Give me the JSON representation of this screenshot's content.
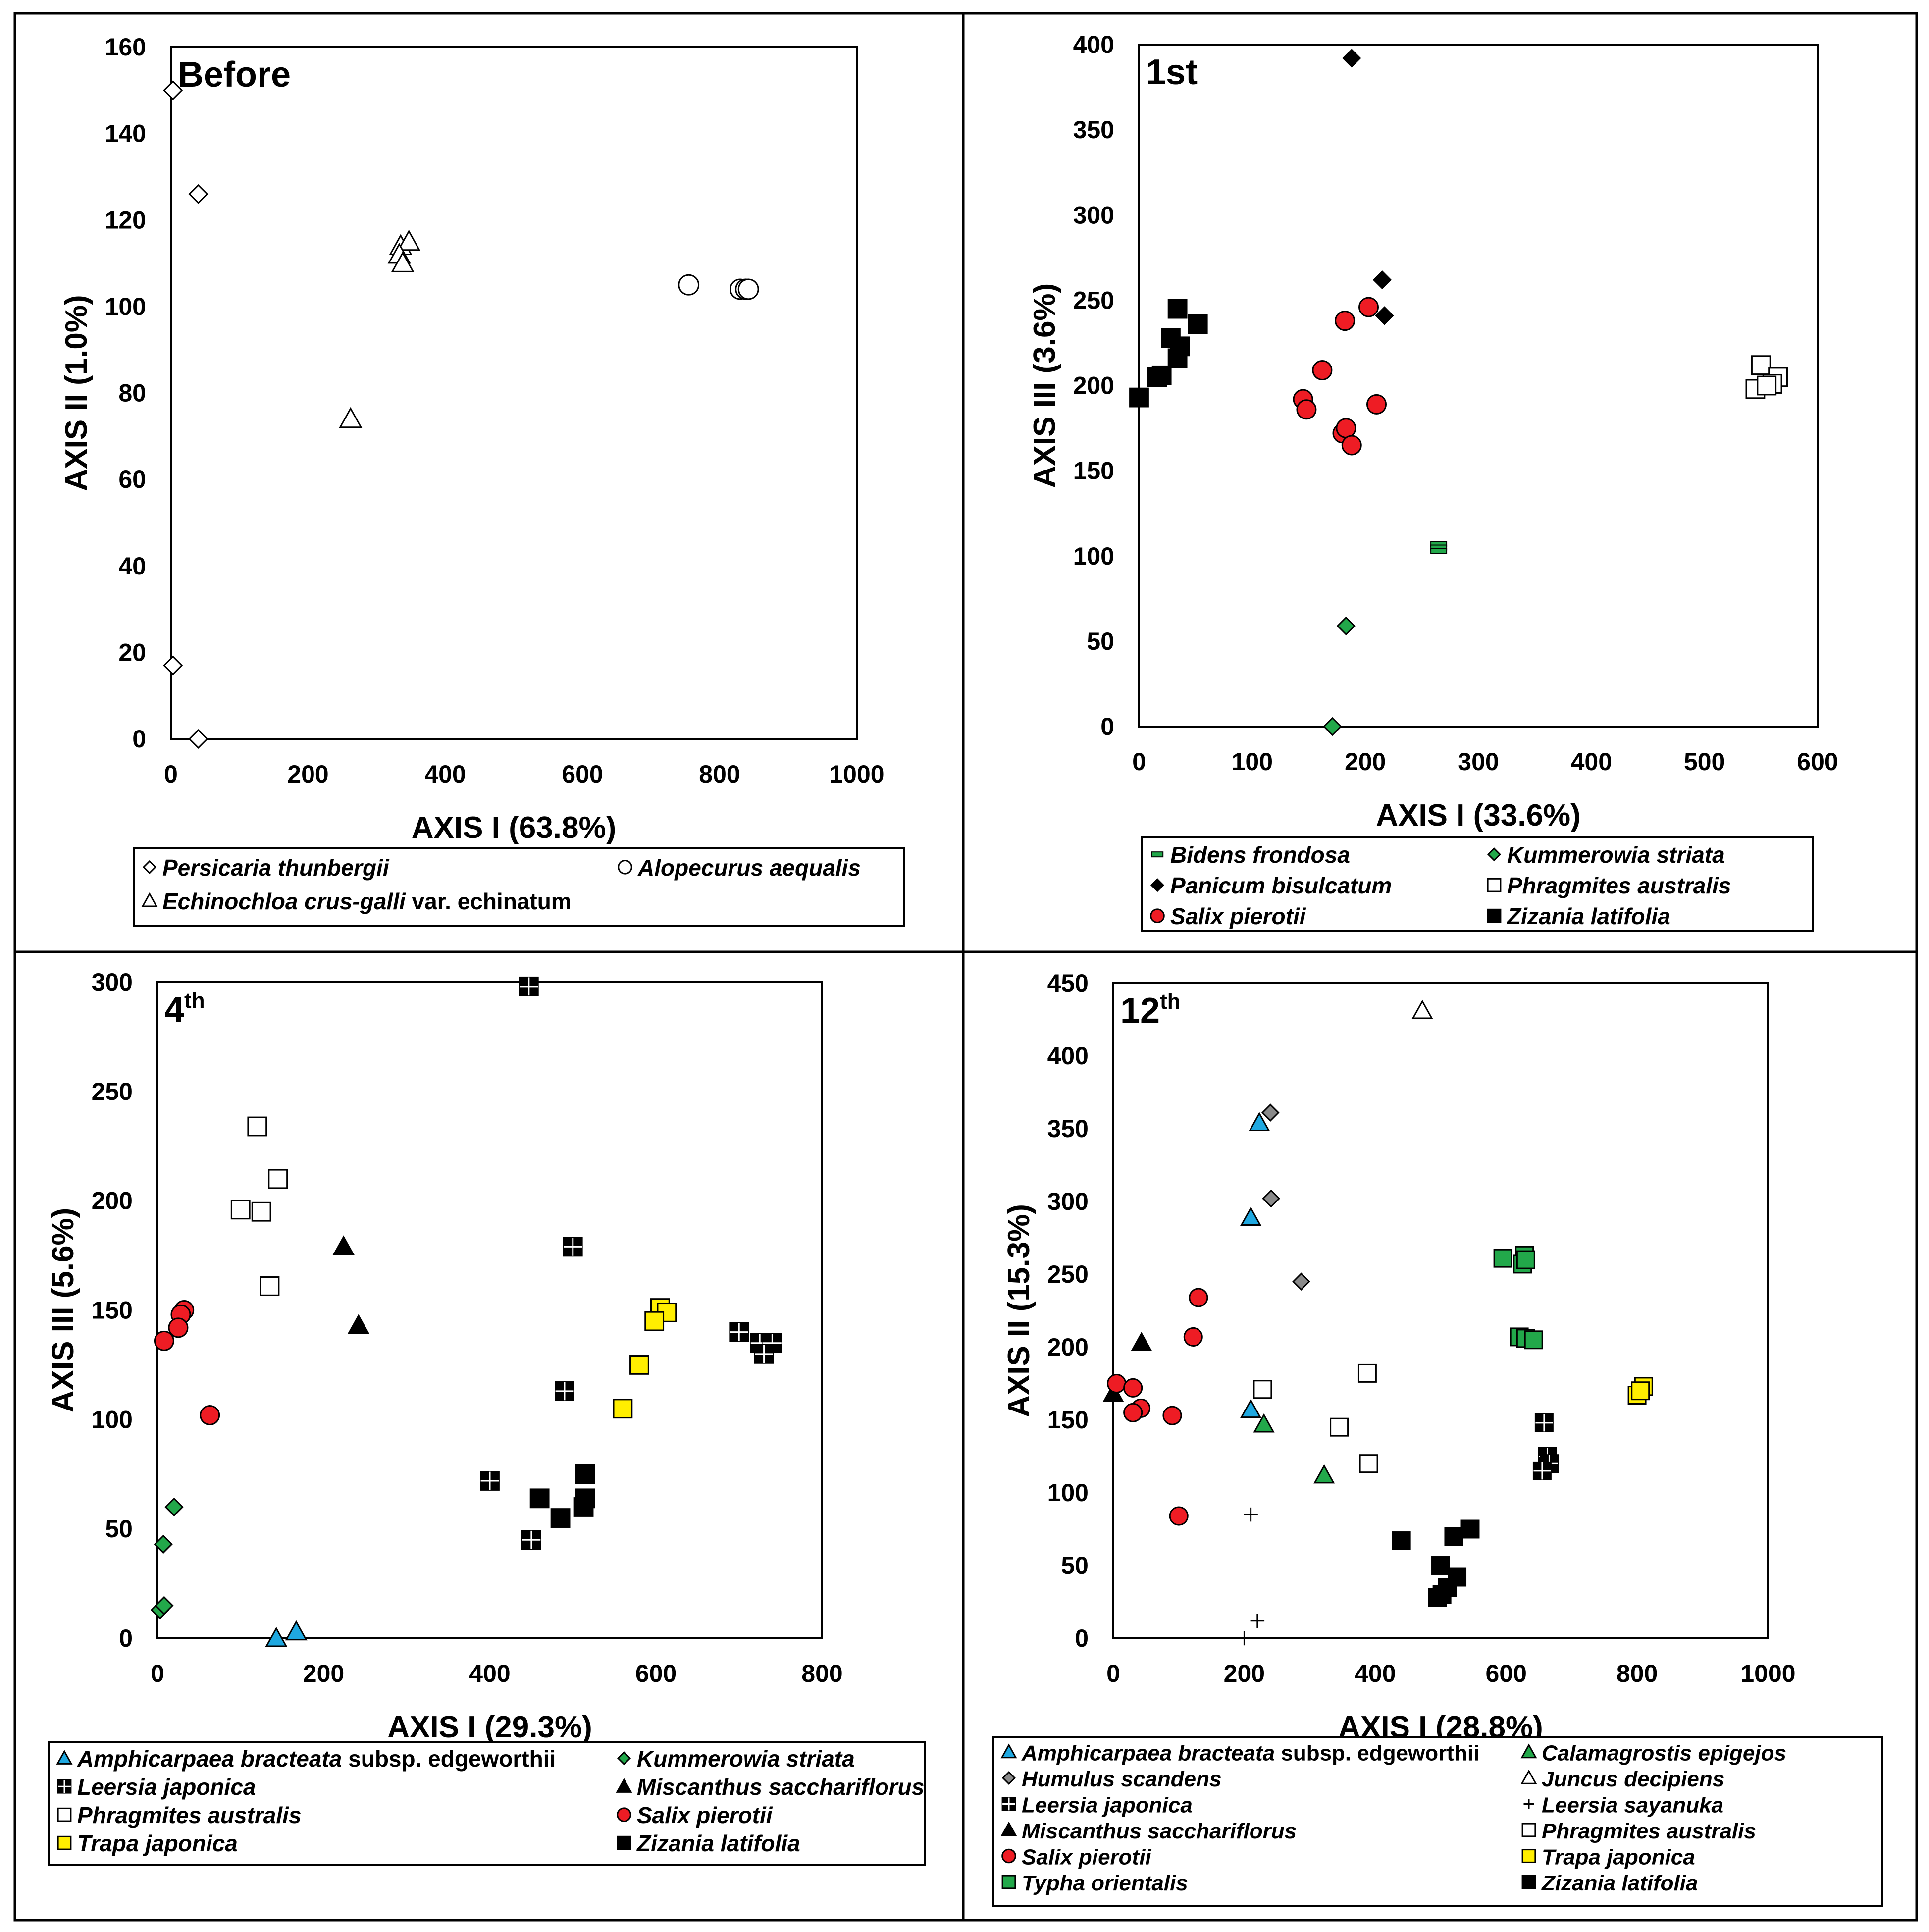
{
  "figure": {
    "colors": {
      "stroke": "#000000",
      "white": "#ffffff",
      "black": "#000000",
      "red": "#ee1c24",
      "green": "#22a84a",
      "blue": "#1fa8e0",
      "yellow": "#ffee00",
      "gray": "#8a8a8a",
      "tgreen": "#22a84a"
    }
  },
  "chart_data": [
    {
      "id": "before",
      "type": "scatter",
      "title": "Before",
      "xlabel": "AXIS I (63.8%)",
      "ylabel": "AXIS II (1.0%)",
      "xlim": [
        0,
        1000
      ],
      "ylim": [
        0,
        160
      ],
      "xticks": [
        0,
        200,
        400,
        600,
        800,
        1000
      ],
      "yticks": [
        0,
        20,
        40,
        60,
        80,
        100,
        120,
        140,
        160
      ],
      "series": [
        {
          "name": "Persicaria thunbergii",
          "suffix": "",
          "marker": "diamond",
          "fill": "white",
          "points": [
            [
              3,
              150
            ],
            [
              40,
              126
            ],
            [
              3,
              17
            ],
            [
              40,
              0
            ]
          ]
        },
        {
          "name": "Alopecurus aequalis",
          "suffix": "",
          "marker": "circle",
          "fill": "white",
          "points": [
            [
              755,
              105
            ],
            [
              830,
              104
            ],
            [
              838,
              104
            ],
            [
              842,
              104
            ]
          ]
        },
        {
          "name": "Echinochloa crus-galli",
          "suffix": " var. echinatum",
          "marker": "triangle",
          "fill": "white",
          "points": [
            [
              335,
              114
            ],
            [
              347,
              115
            ],
            [
              333,
              112
            ],
            [
              338,
              110
            ],
            [
              262,
              74
            ]
          ]
        }
      ]
    },
    {
      "id": "first",
      "type": "scatter",
      "title": "1st",
      "xlabel": "AXIS I (33.6%)",
      "ylabel": "AXIS III (3.6%)",
      "xlim": [
        0,
        600
      ],
      "ylim": [
        0,
        400
      ],
      "xticks": [
        0,
        100,
        200,
        300,
        400,
        500,
        600
      ],
      "yticks": [
        0,
        50,
        100,
        150,
        200,
        250,
        300,
        350,
        400
      ],
      "series": [
        {
          "name": "Bidens frondosa",
          "suffix": "",
          "marker": "dash",
          "fill": "tgreen",
          "points": [
            [
              265,
              107
            ],
            [
              265,
              105
            ],
            [
              265,
              103
            ]
          ]
        },
        {
          "name": "Kummerowia striata",
          "suffix": "",
          "marker": "diamond",
          "fill": "green",
          "points": [
            [
              183,
              59
            ],
            [
              171,
              0
            ]
          ]
        },
        {
          "name": "Panicum bisulcatum",
          "suffix": "",
          "marker": "diamond",
          "fill": "black",
          "points": [
            [
              188,
              392
            ],
            [
              215,
              262
            ],
            [
              217,
              241
            ]
          ]
        },
        {
          "name": "Phragmites australis",
          "suffix": "",
          "marker": "square",
          "fill": "white",
          "points": [
            [
              550,
              212
            ],
            [
              565,
              205
            ],
            [
              545,
              198
            ],
            [
              560,
              201
            ],
            [
              555,
              200
            ]
          ]
        },
        {
          "name": "Salix pierotii",
          "suffix": "",
          "marker": "circle",
          "fill": "red",
          "points": [
            [
              182,
              238
            ],
            [
              203,
              246
            ],
            [
              162,
              209
            ],
            [
              210,
              189
            ],
            [
              145,
              192
            ],
            [
              148,
              186
            ],
            [
              180,
              172
            ],
            [
              183,
              175
            ],
            [
              188,
              165
            ]
          ]
        },
        {
          "name": "Zizania latifolia",
          "suffix": "",
          "marker": "square",
          "fill": "black",
          "points": [
            [
              0,
              193
            ],
            [
              16,
              205
            ],
            [
              20,
              206
            ],
            [
              34,
              245
            ],
            [
              28,
              228
            ],
            [
              36,
              223
            ],
            [
              34,
              216
            ],
            [
              52,
              236
            ]
          ]
        }
      ]
    },
    {
      "id": "fourth",
      "type": "scatter",
      "title": "4",
      "title_sup": "th",
      "xlabel": "AXIS I (29.3%)",
      "ylabel": "AXIS III (5.6%)",
      "xlim": [
        0,
        800
      ],
      "ylim": [
        0,
        300
      ],
      "xticks": [
        0,
        200,
        400,
        600,
        800
      ],
      "yticks": [
        0,
        50,
        100,
        150,
        200,
        250,
        300
      ],
      "series": [
        {
          "name": "Amphicarpaea bracteata",
          "suffix": " subsp. edgeworthii",
          "marker": "triangle",
          "fill": "blue",
          "points": [
            [
              143,
              0
            ],
            [
              167,
              3
            ]
          ]
        },
        {
          "name": "Kummerowia striata",
          "suffix": "",
          "marker": "diamond",
          "fill": "green",
          "points": [
            [
              20,
              60
            ],
            [
              7,
              43
            ],
            [
              3,
              13
            ],
            [
              8,
              15
            ]
          ]
        },
        {
          "name": "Leersia japonica",
          "suffix": "",
          "marker": "squareplus",
          "fill": "black",
          "points": [
            [
              447,
              298
            ],
            [
              500,
              179
            ],
            [
              490,
              113
            ],
            [
              400,
              72
            ],
            [
              450,
              45
            ],
            [
              700,
              140
            ],
            [
              725,
              135
            ],
            [
              740,
              135
            ],
            [
              730,
              130
            ]
          ]
        },
        {
          "name": "Miscanthus sacchariflorus",
          "suffix": "",
          "marker": "triangle",
          "fill": "black",
          "points": [
            [
              224,
              179
            ],
            [
              242,
              143
            ]
          ]
        },
        {
          "name": "Phragmites australis",
          "suffix": "",
          "marker": "square",
          "fill": "white",
          "points": [
            [
              120,
              234
            ],
            [
              145,
              210
            ],
            [
              100,
              196
            ],
            [
              125,
              195
            ],
            [
              135,
              161
            ]
          ]
        },
        {
          "name": "Salix pierotii",
          "suffix": "",
          "marker": "circle",
          "fill": "red",
          "points": [
            [
              32,
              150
            ],
            [
              28,
              148
            ],
            [
              25,
              142
            ],
            [
              8,
              136
            ],
            [
              63,
              102
            ]
          ]
        },
        {
          "name": "Trapa japonica",
          "suffix": "",
          "marker": "square",
          "fill": "yellow",
          "points": [
            [
              605,
              151
            ],
            [
              613,
              149
            ],
            [
              598,
              145
            ],
            [
              580,
              125
            ],
            [
              560,
              105
            ]
          ]
        },
        {
          "name": "Zizania latifolia",
          "suffix": "",
          "marker": "square",
          "fill": "black",
          "points": [
            [
              515,
              75
            ],
            [
              460,
              64
            ],
            [
              515,
              64
            ],
            [
              485,
              55
            ],
            [
              513,
              60
            ]
          ]
        }
      ]
    },
    {
      "id": "twelfth",
      "type": "scatter",
      "title": "12",
      "title_sup": "th",
      "xlabel": "AXIS I (28.8%)",
      "ylabel": "AXIS II (15.3%)",
      "xlim": [
        0,
        1000
      ],
      "ylim": [
        0,
        450
      ],
      "xticks": [
        0,
        200,
        400,
        600,
        800,
        1000
      ],
      "yticks": [
        0,
        50,
        100,
        150,
        200,
        250,
        300,
        350,
        400,
        450
      ],
      "series": [
        {
          "name": "Amphicarpaea bracteata",
          "suffix": " subsp. edgeworthii",
          "marker": "triangle",
          "fill": "blue",
          "points": [
            [
              223,
              354
            ],
            [
              210,
              289
            ],
            [
              210,
              157
            ]
          ]
        },
        {
          "name": "Calamagrostis epigejos",
          "suffix": "",
          "marker": "triangle",
          "fill": "green",
          "points": [
            [
              230,
              147
            ],
            [
              322,
              112
            ]
          ]
        },
        {
          "name": "Humulus scandens",
          "suffix": "",
          "marker": "diamond",
          "fill": "gray",
          "points": [
            [
              240,
              361
            ],
            [
              241,
              302
            ],
            [
              287,
              245
            ]
          ]
        },
        {
          "name": "Juncus decipiens",
          "suffix": "",
          "marker": "triangle",
          "fill": "white",
          "points": [
            [
              472,
              431
            ]
          ]
        },
        {
          "name": "Leersia japonica",
          "suffix": "",
          "marker": "squareplus",
          "fill": "black",
          "points": [
            [
              658,
              148
            ],
            [
              663,
              125
            ],
            [
              666,
              120
            ],
            [
              655,
              115
            ]
          ]
        },
        {
          "name": "Leersia sayanuka",
          "suffix": "",
          "marker": "plus",
          "fill": "black",
          "points": [
            [
              210,
              85
            ],
            [
              220,
              12
            ],
            [
              200,
              0
            ]
          ]
        },
        {
          "name": "Miscanthus sacchariflorus",
          "suffix": "",
          "marker": "triangle",
          "fill": "black",
          "points": [
            [
              43,
              203
            ],
            [
              0,
              168
            ]
          ]
        },
        {
          "name": "Phragmites australis",
          "suffix": "",
          "marker": "square",
          "fill": "white",
          "points": [
            [
              388,
              182
            ],
            [
              228,
              171
            ],
            [
              345,
              145
            ],
            [
              390,
              120
            ]
          ]
        },
        {
          "name": "Salix pierotii",
          "suffix": "",
          "marker": "circle",
          "fill": "red",
          "points": [
            [
              130,
              234
            ],
            [
              122,
              207
            ],
            [
              5,
              175
            ],
            [
              30,
              172
            ],
            [
              42,
              158
            ],
            [
              30,
              155
            ],
            [
              90,
              153
            ],
            [
              100,
              84
            ]
          ]
        },
        {
          "name": "Trapa japonica",
          "suffix": "",
          "marker": "square",
          "fill": "yellow",
          "points": [
            [
              810,
              173
            ],
            [
              800,
              167
            ],
            [
              805,
              170
            ]
          ]
        },
        {
          "name": "Typha orientalis",
          "suffix": "",
          "marker": "square",
          "fill": "green",
          "points": [
            [
              595,
              261
            ],
            [
              628,
              263
            ],
            [
              625,
              257
            ],
            [
              630,
              260
            ],
            [
              620,
              207
            ],
            [
              630,
              206
            ],
            [
              642,
              205
            ]
          ]
        },
        {
          "name": "Zizania latifolia",
          "suffix": "",
          "marker": "square",
          "fill": "black",
          "points": [
            [
              440,
              67
            ],
            [
              520,
              70
            ],
            [
              545,
              75
            ],
            [
              500,
              50
            ],
            [
              525,
              42
            ],
            [
              510,
              35
            ],
            [
              495,
              28
            ],
            [
              502,
              30
            ]
          ]
        }
      ]
    }
  ]
}
